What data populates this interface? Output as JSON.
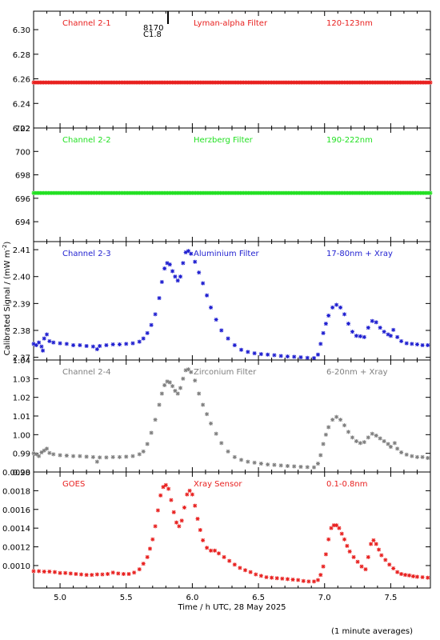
{
  "chart_data": [
    {
      "type": "scatter",
      "labels": [
        "Channel 2-1",
        "Lyman-alpha Filter",
        "120-123nm"
      ],
      "color": "#e8201f",
      "ylim": [
        6.22,
        6.315
      ],
      "yticks": [
        6.22,
        6.24,
        6.26,
        6.28,
        6.3
      ],
      "ytick_labels": [
        "6.22",
        "6.24",
        "6.26",
        "6.28",
        "6.30"
      ],
      "flat_value": 6.257,
      "marker_annotation": {
        "x": 5.81,
        "top": "8170",
        "bottom": "C1.8"
      }
    },
    {
      "type": "scatter",
      "labels": [
        "Channel 2-2",
        "Herzberg Filter",
        "190-222nm"
      ],
      "color": "#22e022",
      "ylim": [
        692.3,
        702
      ],
      "yticks": [
        694,
        696,
        698,
        700,
        702
      ],
      "ytick_labels": [
        "694",
        "696",
        "698",
        "700",
        "702"
      ],
      "flat_value": 696.45
    },
    {
      "type": "scatter",
      "labels": [
        "Channel 2-3",
        "Aluminium Filter",
        "17-80nm + Xray"
      ],
      "color": "#1f1fd0",
      "ylim": [
        2.369,
        2.413
      ],
      "yticks": [
        2.37,
        2.38,
        2.39,
        2.4,
        2.41
      ],
      "ytick_labels": [
        "2.37",
        "2.38",
        "2.39",
        "2.40",
        "2.41"
      ],
      "points": [
        [
          4.8,
          2.375
        ],
        [
          4.82,
          2.3745
        ],
        [
          4.84,
          2.3755
        ],
        [
          4.86,
          2.374
        ],
        [
          4.87,
          2.3725
        ],
        [
          4.88,
          2.377
        ],
        [
          4.9,
          2.3785
        ],
        [
          4.92,
          2.376
        ],
        [
          4.95,
          2.3755
        ],
        [
          5.0,
          2.3752
        ],
        [
          5.05,
          2.375
        ],
        [
          5.1,
          2.3745
        ],
        [
          5.15,
          2.3745
        ],
        [
          5.2,
          2.3742
        ],
        [
          5.25,
          2.374
        ],
        [
          5.28,
          2.373
        ],
        [
          5.3,
          2.3742
        ],
        [
          5.35,
          2.3745
        ],
        [
          5.4,
          2.3748
        ],
        [
          5.45,
          2.3748
        ],
        [
          5.5,
          2.375
        ],
        [
          5.55,
          2.3752
        ],
        [
          5.6,
          2.3758
        ],
        [
          5.63,
          2.377
        ],
        [
          5.66,
          2.379
        ],
        [
          5.69,
          2.382
        ],
        [
          5.72,
          2.386
        ],
        [
          5.75,
          2.392
        ],
        [
          5.77,
          2.398
        ],
        [
          5.79,
          2.403
        ],
        [
          5.81,
          2.405
        ],
        [
          5.83,
          2.4045
        ],
        [
          5.85,
          2.402
        ],
        [
          5.87,
          2.4
        ],
        [
          5.89,
          2.3985
        ],
        [
          5.91,
          2.4
        ],
        [
          5.93,
          2.405
        ],
        [
          5.95,
          2.409
        ],
        [
          5.97,
          2.4095
        ],
        [
          5.99,
          2.4085
        ],
        [
          6.02,
          2.4055
        ],
        [
          6.05,
          2.4015
        ],
        [
          6.08,
          2.3975
        ],
        [
          6.11,
          2.393
        ],
        [
          6.14,
          2.3885
        ],
        [
          6.18,
          2.384
        ],
        [
          6.22,
          2.38
        ],
        [
          6.27,
          2.377
        ],
        [
          6.32,
          2.3745
        ],
        [
          6.37,
          2.3728
        ],
        [
          6.42,
          2.372
        ],
        [
          6.47,
          2.3715
        ],
        [
          6.52,
          2.3712
        ],
        [
          6.57,
          2.371
        ],
        [
          6.62,
          2.3708
        ],
        [
          6.67,
          2.3705
        ],
        [
          6.72,
          2.3703
        ],
        [
          6.77,
          2.3702
        ],
        [
          6.82,
          2.37
        ],
        [
          6.87,
          2.3698
        ],
        [
          6.92,
          2.3697
        ],
        [
          6.95,
          2.371
        ],
        [
          6.97,
          2.375
        ],
        [
          6.99,
          2.379
        ],
        [
          7.01,
          2.3825
        ],
        [
          7.03,
          2.3855
        ],
        [
          7.06,
          2.3885
        ],
        [
          7.09,
          2.3895
        ],
        [
          7.12,
          2.3885
        ],
        [
          7.15,
          2.386
        ],
        [
          7.18,
          2.3825
        ],
        [
          7.21,
          2.3795
        ],
        [
          7.24,
          2.378
        ],
        [
          7.27,
          2.3778
        ],
        [
          7.3,
          2.3775
        ],
        [
          7.33,
          2.381
        ],
        [
          7.36,
          2.3835
        ],
        [
          7.39,
          2.383
        ],
        [
          7.42,
          2.381
        ],
        [
          7.45,
          2.3795
        ],
        [
          7.48,
          2.3785
        ],
        [
          7.5,
          2.378
        ],
        [
          7.52,
          2.3802
        ],
        [
          7.55,
          2.3775
        ],
        [
          7.58,
          2.376
        ],
        [
          7.62,
          2.3752
        ],
        [
          7.66,
          2.375
        ],
        [
          7.7,
          2.3748
        ],
        [
          7.74,
          2.3745
        ],
        [
          7.78,
          2.3745
        ]
      ]
    },
    {
      "type": "scatter",
      "labels": [
        "Channel 2-4",
        "Zirconium Filter",
        "6-20nm + Xray"
      ],
      "color": "#7f7f7f",
      "ylim": [
        0.98,
        1.04
      ],
      "yticks": [
        0.98,
        0.99,
        1.0,
        1.01,
        1.02,
        1.03,
        1.04
      ],
      "ytick_labels": [
        "0.98",
        "0.99",
        "1.00",
        "1.01",
        "1.02",
        "1.03",
        "1.04"
      ],
      "points": [
        [
          4.8,
          0.99
        ],
        [
          4.82,
          0.9895
        ],
        [
          4.84,
          0.9885
        ],
        [
          4.86,
          0.9905
        ],
        [
          4.88,
          0.9915
        ],
        [
          4.9,
          0.9925
        ],
        [
          4.92,
          0.9902
        ],
        [
          4.95,
          0.9895
        ],
        [
          5.0,
          0.989
        ],
        [
          5.05,
          0.9888
        ],
        [
          5.1,
          0.9885
        ],
        [
          5.15,
          0.9885
        ],
        [
          5.2,
          0.9882
        ],
        [
          5.25,
          0.988
        ],
        [
          5.28,
          0.9855
        ],
        [
          5.3,
          0.9878
        ],
        [
          5.35,
          0.9878
        ],
        [
          5.4,
          0.988
        ],
        [
          5.45,
          0.988
        ],
        [
          5.5,
          0.9882
        ],
        [
          5.55,
          0.9885
        ],
        [
          5.6,
          0.9895
        ],
        [
          5.63,
          0.991
        ],
        [
          5.66,
          0.995
        ],
        [
          5.69,
          1.001
        ],
        [
          5.72,
          1.008
        ],
        [
          5.75,
          1.016
        ],
        [
          5.77,
          1.022
        ],
        [
          5.79,
          1.0265
        ],
        [
          5.81,
          1.0285
        ],
        [
          5.83,
          1.028
        ],
        [
          5.85,
          1.026
        ],
        [
          5.87,
          1.0235
        ],
        [
          5.89,
          1.022
        ],
        [
          5.91,
          1.025
        ],
        [
          5.93,
          1.03
        ],
        [
          5.95,
          1.0345
        ],
        [
          5.97,
          1.035
        ],
        [
          5.99,
          1.0335
        ],
        [
          6.02,
          1.029
        ],
        [
          6.05,
          1.022
        ],
        [
          6.08,
          1.016
        ],
        [
          6.11,
          1.011
        ],
        [
          6.14,
          1.006
        ],
        [
          6.18,
          1.0005
        ],
        [
          6.22,
          0.9955
        ],
        [
          6.27,
          0.991
        ],
        [
          6.32,
          0.988
        ],
        [
          6.37,
          0.9865
        ],
        [
          6.42,
          0.9855
        ],
        [
          6.47,
          0.985
        ],
        [
          6.52,
          0.9845
        ],
        [
          6.57,
          0.984
        ],
        [
          6.62,
          0.9838
        ],
        [
          6.67,
          0.9835
        ],
        [
          6.72,
          0.9832
        ],
        [
          6.77,
          0.983
        ],
        [
          6.82,
          0.9828
        ],
        [
          6.87,
          0.9826
        ],
        [
          6.92,
          0.9825
        ],
        [
          6.95,
          0.9845
        ],
        [
          6.97,
          0.989
        ],
        [
          6.99,
          0.995
        ],
        [
          7.01,
          1.0
        ],
        [
          7.03,
          1.004
        ],
        [
          7.06,
          1.008
        ],
        [
          7.09,
          1.0095
        ],
        [
          7.12,
          1.008
        ],
        [
          7.15,
          1.005
        ],
        [
          7.18,
          1.0015
        ],
        [
          7.21,
          0.9985
        ],
        [
          7.24,
          0.9965
        ],
        [
          7.27,
          0.9955
        ],
        [
          7.3,
          0.996
        ],
        [
          7.33,
          0.9985
        ],
        [
          7.36,
          1.0005
        ],
        [
          7.39,
          0.9995
        ],
        [
          7.42,
          0.998
        ],
        [
          7.45,
          0.9965
        ],
        [
          7.48,
          0.995
        ],
        [
          7.5,
          0.9935
        ],
        [
          7.53,
          0.9955
        ],
        [
          7.55,
          0.9925
        ],
        [
          7.58,
          0.9905
        ],
        [
          7.62,
          0.9893
        ],
        [
          7.66,
          0.9885
        ],
        [
          7.7,
          0.988
        ],
        [
          7.74,
          0.988
        ],
        [
          7.78,
          0.9875
        ]
      ]
    },
    {
      "type": "scatter",
      "labels": [
        "GOES",
        "Xray Sensor",
        "0.1-0.8nm"
      ],
      "color": "#e8201f",
      "ylim": [
        0.00076,
        0.002
      ],
      "yticks": [
        0.001,
        0.0012,
        0.0014,
        0.0016,
        0.0018,
        0.002
      ],
      "ytick_labels": [
        "0.0010",
        "0.0012",
        "0.0014",
        "0.0016",
        "0.0018",
        "0.0020"
      ],
      "xticks": [
        5.0,
        5.5,
        6.0,
        6.5,
        7.0,
        7.5
      ],
      "xtick_labels": [
        "5.0",
        "5.5",
        "6.0",
        "6.5",
        "7.0",
        "7.5"
      ],
      "points": [
        [
          4.8,
          0.00094
        ],
        [
          4.84,
          0.00094
        ],
        [
          4.88,
          0.000935
        ],
        [
          4.92,
          0.000935
        ],
        [
          4.96,
          0.00093
        ],
        [
          5.0,
          0.00092
        ],
        [
          5.04,
          0.00092
        ],
        [
          5.08,
          0.000915
        ],
        [
          5.12,
          0.00091
        ],
        [
          5.16,
          0.000905
        ],
        [
          5.2,
          0.0009
        ],
        [
          5.24,
          0.0009
        ],
        [
          5.28,
          0.000905
        ],
        [
          5.32,
          0.000905
        ],
        [
          5.36,
          0.00091
        ],
        [
          5.4,
          0.000925
        ],
        [
          5.44,
          0.000915
        ],
        [
          5.48,
          0.00091
        ],
        [
          5.52,
          0.00091
        ],
        [
          5.56,
          0.000925
        ],
        [
          5.6,
          0.00096
        ],
        [
          5.63,
          0.00102
        ],
        [
          5.66,
          0.00109
        ],
        [
          5.68,
          0.00118
        ],
        [
          5.7,
          0.00128
        ],
        [
          5.72,
          0.00142
        ],
        [
          5.74,
          0.00159
        ],
        [
          5.76,
          0.00175
        ],
        [
          5.78,
          0.00184
        ],
        [
          5.8,
          0.00186
        ],
        [
          5.82,
          0.00182
        ],
        [
          5.84,
          0.0017
        ],
        [
          5.86,
          0.00157
        ],
        [
          5.88,
          0.00146
        ],
        [
          5.9,
          0.00142
        ],
        [
          5.92,
          0.00148
        ],
        [
          5.94,
          0.00162
        ],
        [
          5.96,
          0.00176
        ],
        [
          5.98,
          0.0018
        ],
        [
          6.0,
          0.00176
        ],
        [
          6.02,
          0.00164
        ],
        [
          6.04,
          0.0015
        ],
        [
          6.06,
          0.00138
        ],
        [
          6.08,
          0.00127
        ],
        [
          6.11,
          0.00119
        ],
        [
          6.14,
          0.00116
        ],
        [
          6.17,
          0.00116
        ],
        [
          6.2,
          0.00113
        ],
        [
          6.24,
          0.00109
        ],
        [
          6.28,
          0.00105
        ],
        [
          6.32,
          0.00101
        ],
        [
          6.36,
          0.000975
        ],
        [
          6.4,
          0.00095
        ],
        [
          6.44,
          0.00093
        ],
        [
          6.48,
          0.000905
        ],
        [
          6.52,
          0.00089
        ],
        [
          6.56,
          0.000875
        ],
        [
          6.6,
          0.00087
        ],
        [
          6.64,
          0.000865
        ],
        [
          6.68,
          0.00086
        ],
        [
          6.72,
          0.000855
        ],
        [
          6.76,
          0.00085
        ],
        [
          6.8,
          0.000845
        ],
        [
          6.84,
          0.000835
        ],
        [
          6.88,
          0.00083
        ],
        [
          6.92,
          0.00083
        ],
        [
          6.95,
          0.000845
        ],
        [
          6.97,
          0.0009
        ],
        [
          6.99,
          0.00099
        ],
        [
          7.01,
          0.00112
        ],
        [
          7.03,
          0.00128
        ],
        [
          7.05,
          0.0014
        ],
        [
          7.07,
          0.00143
        ],
        [
          7.09,
          0.00143
        ],
        [
          7.11,
          0.0014
        ],
        [
          7.13,
          0.00134
        ],
        [
          7.15,
          0.00128
        ],
        [
          7.17,
          0.00121
        ],
        [
          7.19,
          0.00115
        ],
        [
          7.22,
          0.00109
        ],
        [
          7.25,
          0.00104
        ],
        [
          7.28,
          0.00099
        ],
        [
          7.31,
          0.00096
        ],
        [
          7.33,
          0.00109
        ],
        [
          7.35,
          0.00123
        ],
        [
          7.37,
          0.00127
        ],
        [
          7.39,
          0.00123
        ],
        [
          7.41,
          0.00117
        ],
        [
          7.43,
          0.00111
        ],
        [
          7.46,
          0.00106
        ],
        [
          7.49,
          0.00101
        ],
        [
          7.52,
          0.00097
        ],
        [
          7.55,
          0.00093
        ],
        [
          7.58,
          0.00091
        ],
        [
          7.61,
          0.0009
        ],
        [
          7.64,
          0.000895
        ],
        [
          7.67,
          0.000885
        ],
        [
          7.7,
          0.00088
        ],
        [
          7.74,
          0.000875
        ],
        [
          7.78,
          0.00087
        ]
      ]
    }
  ],
  "xlim": [
    4.8,
    7.8
  ],
  "xlabel": "Time / h UTC, 28 May 2025",
  "ylabel": "Calibrated Signal / (mW m",
  "ylabel_sup": "-2",
  "ylabel_close": ")",
  "footnote": "(1 minute averages)"
}
